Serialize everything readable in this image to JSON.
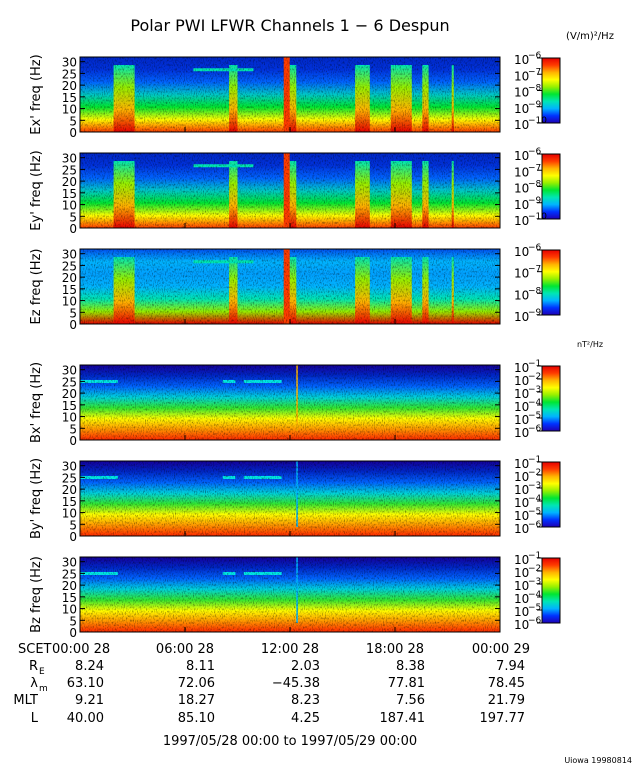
{
  "title": "Polar PWI LFWR Channels 1 − 6 Despun",
  "colors": {
    "colormap": [
      "#1e00b4",
      "#0032ff",
      "#00b4ff",
      "#00e6b4",
      "#00e632",
      "#96f000",
      "#ffff00",
      "#ffb400",
      "#ff3c00",
      "#e60000"
    ]
  },
  "chart_data": [
    {
      "type": "heatmap",
      "ylabel": "Ex' freq (Hz)",
      "ylim": [
        0,
        32
      ],
      "yticks": [
        "0",
        "5",
        "10",
        "15",
        "20",
        "25",
        "30"
      ],
      "colorbar": {
        "unit": "(V/m)²/Hz",
        "ticks": [
          {
            "b": "10",
            "e": "−6"
          },
          {
            "b": "10",
            "e": "−7"
          },
          {
            "b": "10",
            "e": "−8"
          },
          {
            "b": "10",
            "e": "−9"
          },
          {
            "b": "10",
            "e": "−10"
          }
        ]
      }
    },
    {
      "type": "heatmap",
      "ylabel": "Ey' freq (Hz)",
      "ylim": [
        0,
        32
      ],
      "yticks": [
        "0",
        "5",
        "10",
        "15",
        "20",
        "25",
        "30"
      ],
      "colorbar": {
        "unit": "",
        "ticks": [
          {
            "b": "10",
            "e": "−6"
          },
          {
            "b": "10",
            "e": "−7"
          },
          {
            "b": "10",
            "e": "−8"
          },
          {
            "b": "10",
            "e": "−9"
          },
          {
            "b": "10",
            "e": "−10"
          }
        ]
      }
    },
    {
      "type": "heatmap",
      "ylabel": "Ez freq (Hz)",
      "ylim": [
        0,
        32
      ],
      "yticks": [
        "0",
        "5",
        "10",
        "15",
        "20",
        "25",
        "30"
      ],
      "colorbar": {
        "unit": "",
        "ticks": [
          {
            "b": "10",
            "e": "−6"
          },
          {
            "b": "10",
            "e": "−7"
          },
          {
            "b": "10",
            "e": "−8"
          },
          {
            "b": "10",
            "e": "−9"
          }
        ]
      }
    },
    {
      "type": "heatmap",
      "ylabel": "Bx' freq (Hz)",
      "ylim": [
        0,
        32
      ],
      "yticks": [
        "0",
        "5",
        "10",
        "15",
        "20",
        "25",
        "30"
      ],
      "colorbar": {
        "unit": "nT²/Hz",
        "ticks": [
          {
            "b": "10",
            "e": "−1"
          },
          {
            "b": "10",
            "e": "−2"
          },
          {
            "b": "10",
            "e": "−3"
          },
          {
            "b": "10",
            "e": "−4"
          },
          {
            "b": "10",
            "e": "−5"
          },
          {
            "b": "10",
            "e": "−6"
          }
        ]
      }
    },
    {
      "type": "heatmap",
      "ylabel": "By' freq (Hz)",
      "ylim": [
        0,
        32
      ],
      "yticks": [
        "0",
        "5",
        "10",
        "15",
        "20",
        "25",
        "30"
      ],
      "colorbar": {
        "unit": "",
        "ticks": [
          {
            "b": "10",
            "e": "−1"
          },
          {
            "b": "10",
            "e": "−2"
          },
          {
            "b": "10",
            "e": "−3"
          },
          {
            "b": "10",
            "e": "−4"
          },
          {
            "b": "10",
            "e": "−5"
          },
          {
            "b": "10",
            "e": "−6"
          }
        ]
      }
    },
    {
      "type": "heatmap",
      "ylabel": "Bz freq (Hz)",
      "ylim": [
        0,
        32
      ],
      "yticks": [
        "0",
        "5",
        "10",
        "15",
        "20",
        "25",
        "30"
      ],
      "colorbar": {
        "unit": "",
        "ticks": [
          {
            "b": "10",
            "e": "−1"
          },
          {
            "b": "10",
            "e": "−2"
          },
          {
            "b": "10",
            "e": "−3"
          },
          {
            "b": "10",
            "e": "−4"
          },
          {
            "b": "10",
            "e": "−5"
          },
          {
            "b": "10",
            "e": "−6"
          }
        ]
      }
    }
  ],
  "xaxis": {
    "row_labels": [
      "SCET",
      "R",
      "λ",
      "MLT",
      "L"
    ],
    "row_label_subs": [
      "",
      "E",
      "m",
      "",
      ""
    ],
    "columns": [
      {
        "time": "00:00 28",
        "values": [
          "8.24",
          "63.10",
          "9.21",
          "40.00"
        ]
      },
      {
        "time": "06:00 28",
        "values": [
          "8.11",
          "72.06",
          "18.27",
          "85.10"
        ]
      },
      {
        "time": "12:00 28",
        "values": [
          "2.03",
          "−45.38",
          "8.23",
          "4.25"
        ]
      },
      {
        "time": "18:00 28",
        "values": [
          "8.38",
          "77.81",
          "7.56",
          "187.41"
        ]
      },
      {
        "time": "00:00 29",
        "values": [
          "7.94",
          "78.45",
          "21.79",
          "197.77"
        ]
      }
    ],
    "range": "1997/05/28 00:00 to 1997/05/29 00:00"
  },
  "footer": "Uiowa 19980814"
}
